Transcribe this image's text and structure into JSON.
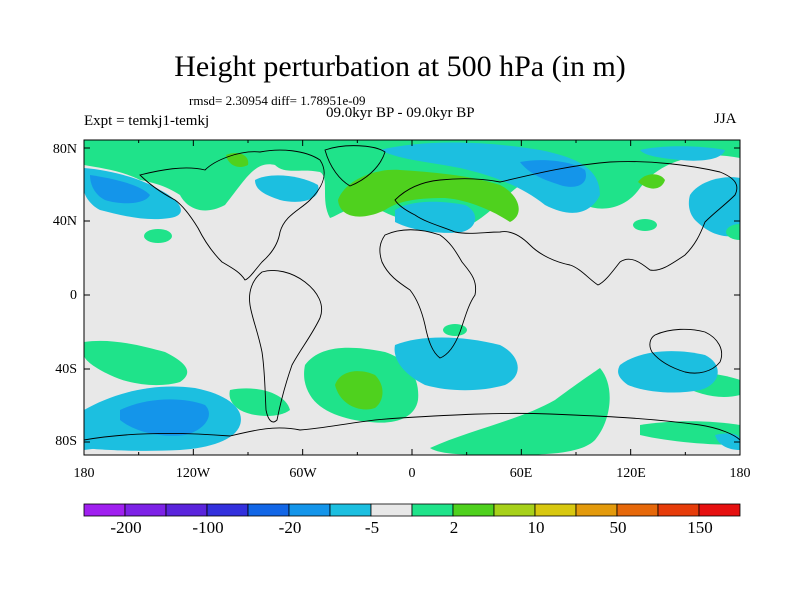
{
  "title": "Height perturbation at 500 hPa (in m)",
  "stats": "rmsd= 2.30954 diff= 1.78951e-09",
  "period": "09.0kyr BP - 09.0kyr BP",
  "experiment": "Expt = temkj1-temkj",
  "season": "JJA",
  "lat_labels": [
    "80N",
    "40N",
    "0",
    "40S",
    "80S"
  ],
  "lon_labels": [
    "180",
    "120W",
    "60W",
    "0",
    "60E",
    "120E",
    "180"
  ],
  "colorbar": {
    "labels": [
      "-200",
      "-100",
      "-20",
      "-5",
      "2",
      "10",
      "50",
      "150"
    ],
    "colors": [
      "#a020f0",
      "#7d22e6",
      "#5a24dc",
      "#3330dd",
      "#1266e6",
      "#1495ea",
      "#1cbfe0",
      "#e8e8e8",
      "#1fe38a",
      "#4fd11e",
      "#a7d11a",
      "#d8c810",
      "#e39a0c",
      "#e6680a",
      "#e63c0a",
      "#e61010"
    ]
  },
  "map_colors": {
    "background": "#e8e8e8",
    "light_green": "#1fe38a",
    "green": "#4fd11e",
    "light_blue": "#1cbfe0",
    "blue": "#1495ea",
    "coast": "#000000"
  }
}
